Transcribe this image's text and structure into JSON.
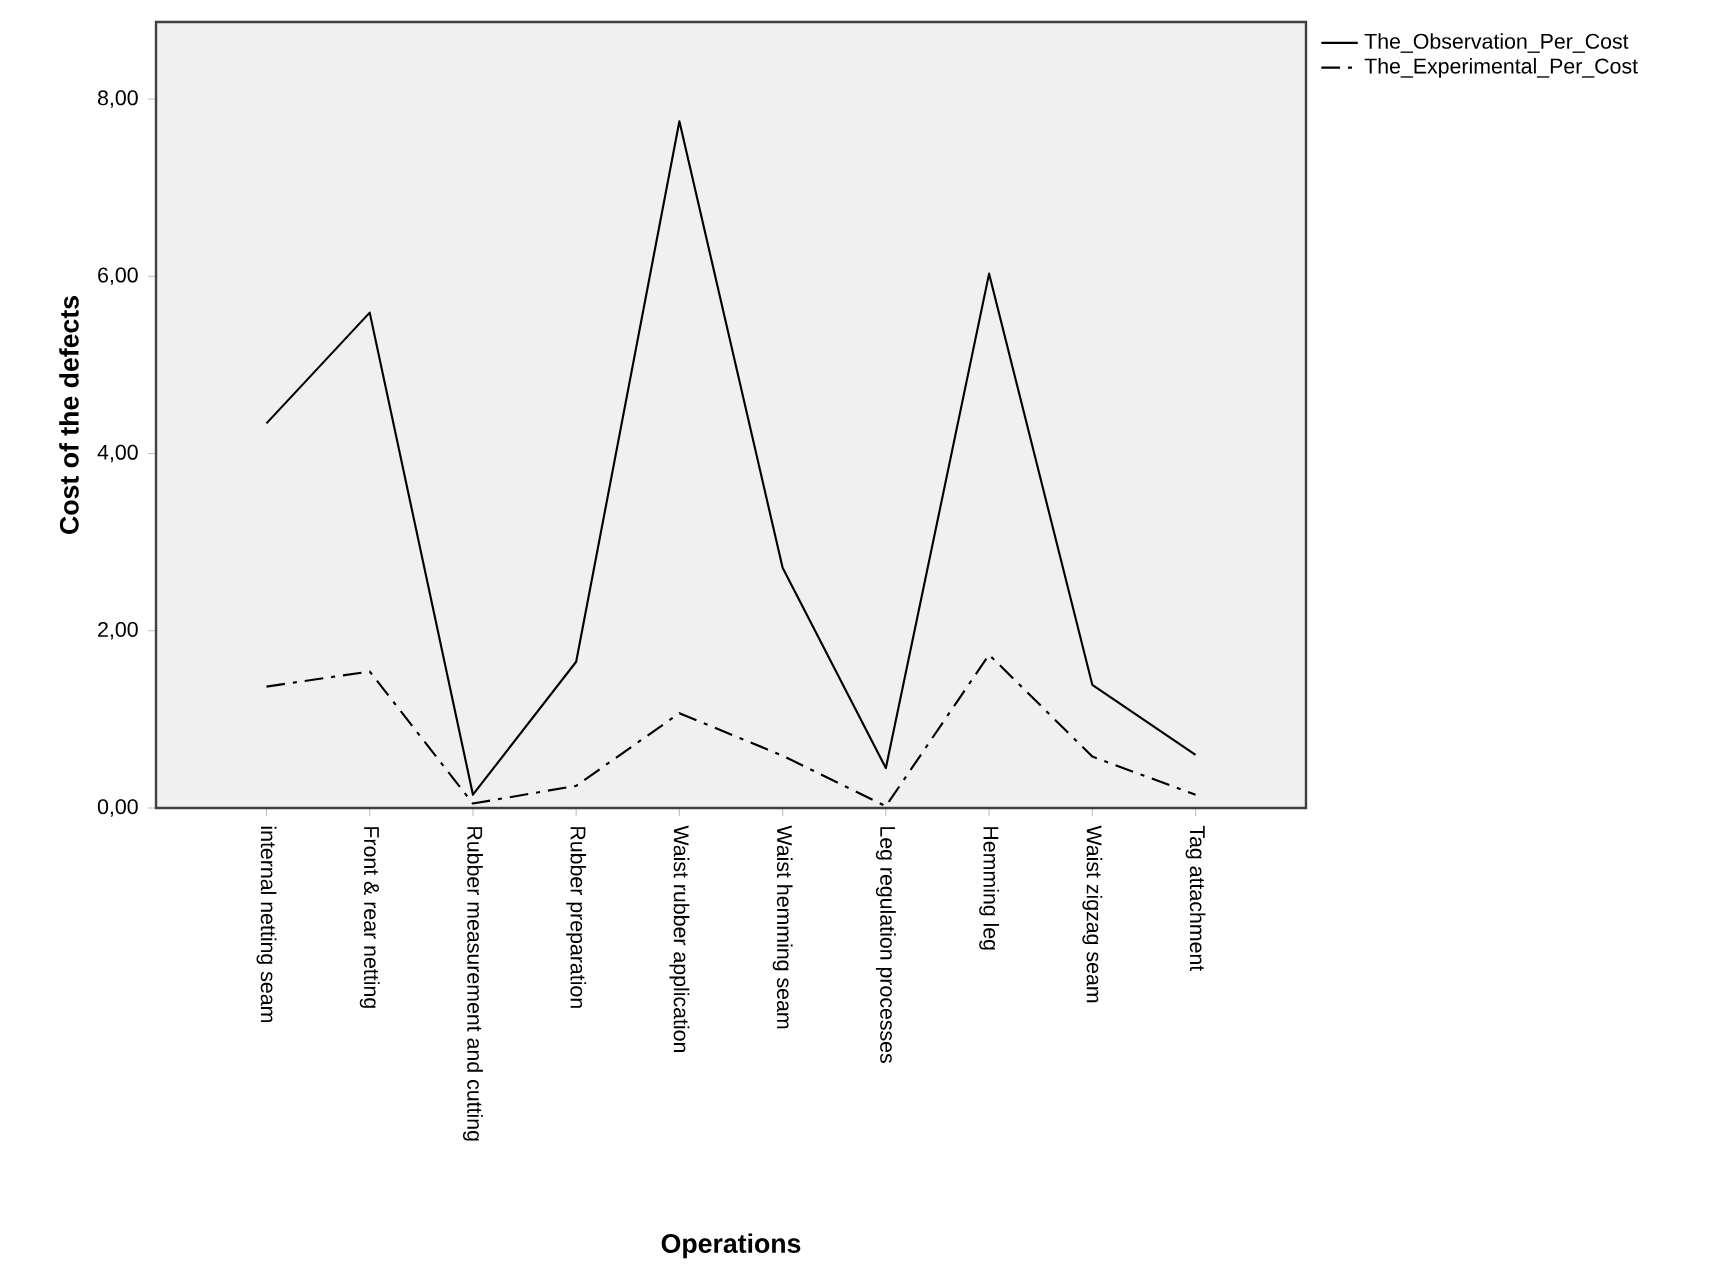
{
  "chart_data": {
    "type": "line",
    "xlabel": "Operations",
    "ylabel": "Cost of the defects",
    "categories": [
      "internal netting seam",
      "Front & rear netting",
      "Rubber measurement and cutting",
      "Rubber preparation",
      "Waist rubber application",
      "Waist hemming seam",
      "Leg regulation processes",
      "Hemming leg",
      "Waist zigzag seam",
      "Tag attachment"
    ],
    "series": [
      {
        "name": "The_Observation_Per_Cost",
        "color": "#000000",
        "line_style": "solid",
        "values": [
          4.34,
          5.59,
          0.15,
          1.65,
          7.75,
          2.71,
          0.45,
          6.03,
          1.39,
          0.6
        ]
      },
      {
        "name": "The_Experimental_Per_Cost",
        "color": "#000000",
        "line_style": "dashdotted",
        "values": [
          1.37,
          1.54,
          0.05,
          0.25,
          1.07,
          0.59,
          0.02,
          1.73,
          0.58,
          0.15
        ]
      }
    ],
    "ylim": [
      0,
      8.87
    ],
    "yticks": [
      {
        "value": 0,
        "label": "0,00"
      },
      {
        "value": 2,
        "label": "2,00"
      },
      {
        "value": 4,
        "label": "4,00"
      },
      {
        "value": 6,
        "label": "6,00"
      },
      {
        "value": 8,
        "label": "8,00"
      }
    ],
    "grid": false,
    "legend": "top right",
    "marker": "none"
  }
}
